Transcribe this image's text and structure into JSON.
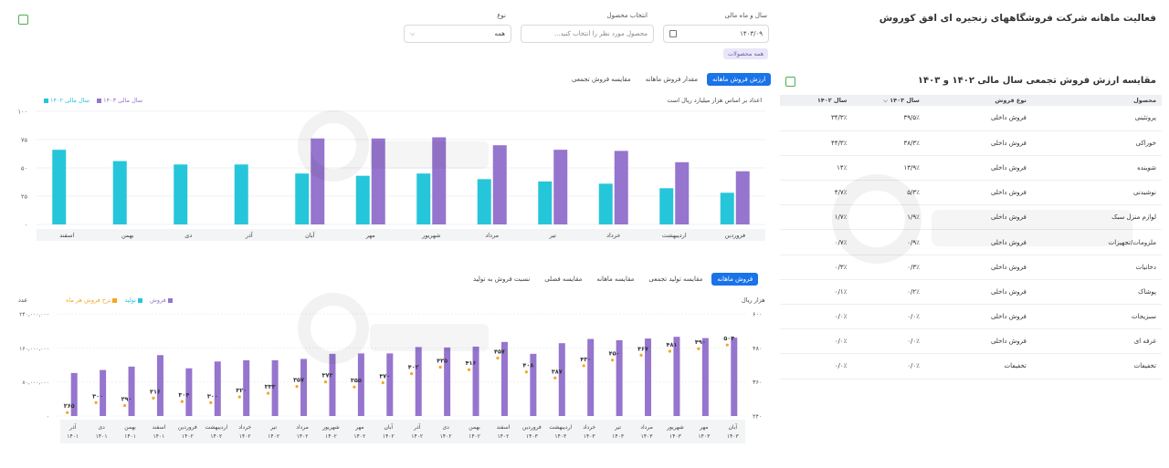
{
  "header": {
    "title": "فعالیت ماهانه شرکت فروشگاههای زنجیره ای افق کوروش",
    "filters": {
      "year_month_label": "سال و ماه مالی",
      "year_month_value": "۱۴۰۳/۰۹",
      "product_label": "انتخاب محصول",
      "product_placeholder": "محصول مورد نظر را انتخاب کنید...",
      "type_label": "نوع",
      "type_value": "همه",
      "chip": "همه محصولات"
    }
  },
  "table": {
    "title": "مقایسه ارزش فروش تجمعی سال مالی ۱۴۰۲ و ۱۴۰۳",
    "columns": [
      "محصول",
      "نوع فروش",
      "سال ۱۴۰۳",
      "سال ۱۴۰۲"
    ],
    "rows": [
      [
        "پروتئینی",
        "فروش داخلی",
        "۳۹/۵٪",
        "۳۴/۳٪"
      ],
      [
        "خوراکی",
        "فروش داخلی",
        "۳۸/۳٪",
        "۴۴/۳٪"
      ],
      [
        "شوینده",
        "فروش داخلی",
        "۱۳/۹٪",
        "۱۴٪"
      ],
      [
        "نوشیدنی",
        "فروش داخلی",
        "۵/۳٪",
        "۴/۷٪"
      ],
      [
        "لوازم منزل سبک",
        "فروش داخلی",
        "۱/۹٪",
        "۱/۷٪"
      ],
      [
        "ملزومات/تجهیزات",
        "فروش داخلی",
        "۰/۹٪",
        "۰/۷٪"
      ],
      [
        "دخانیات",
        "فروش داخلی",
        "۰/۳٪",
        "۰/۳٪"
      ],
      [
        "پوشاک",
        "فروش داخلی",
        "۰/۲٪",
        "۰/۱٪"
      ],
      [
        "سبزیجات",
        "فروش داخلی",
        "۰/۰٪",
        "۰/۰٪"
      ],
      [
        "غرفه ای",
        "فروش داخلی",
        "۰/۰٪",
        "۰/۰٪"
      ],
      [
        "تخفیفات",
        "تخفیفات",
        "۰/۰٪",
        "۰/۰٪"
      ]
    ]
  },
  "top_chart": {
    "tabs": [
      "ارزش فروش ماهانه",
      "مقدار فروش ماهانه",
      "مقایسه فروش تجمعی"
    ],
    "note": "اعداد بر اساس هزار میلیارد ریال است",
    "legend": [
      "سال مالی ۱۴۰۳",
      "سال مالی ۱۴۰۲"
    ],
    "colors": {
      "y1403": "#9575cd",
      "y1402": "#26c6da"
    }
  },
  "bottom_chart": {
    "tabs": [
      "فروش ماهانه",
      "مقایسه تولید تجمعی",
      "مقایسه ماهانه",
      "مقایسه فصلی",
      "نسبت فروش به تولید"
    ],
    "left_unit": "هزار ریال",
    "right_unit": "عدد",
    "legend": [
      "فروش",
      "تولید",
      "نرخ فروش هر ماه"
    ],
    "colors": {
      "sales": "#9575cd",
      "production": "#26c6da",
      "rate": "#f5a623"
    }
  },
  "chart_data": [
    {
      "type": "bar",
      "title": "",
      "categories": [
        "فروردین",
        "اردیبهشت",
        "خرداد",
        "تیر",
        "مرداد",
        "شهریور",
        "مهر",
        "آبان",
        "آذر",
        "دی",
        "بهمن",
        "اسفند"
      ],
      "ylim": [
        0,
        100
      ],
      "yticks": [
        "۰",
        "۲۵",
        "۵۰",
        "۷۵",
        "۱۰۰"
      ],
      "series": [
        {
          "name": "سال مالی ۱۴۰۲",
          "values": [
            28,
            32,
            36,
            38,
            40,
            45,
            43,
            45,
            53,
            53,
            56,
            66
          ]
        },
        {
          "name": "سال مالی ۱۴۰۳",
          "values": [
            47,
            55,
            65,
            66,
            70,
            77,
            76,
            76,
            null,
            null,
            null,
            null
          ]
        }
      ]
    },
    {
      "type": "bar",
      "title": "",
      "categories": [
        "آذر ۱۴۰۱",
        "دی ۱۴۰۱",
        "بهمن ۱۴۰۱",
        "اسفند ۱۴۰۱",
        "فروردین ۱۴۰۲",
        "اردیبهشت ۱۴۰۲",
        "خرداد ۱۴۰۲",
        "تیر ۱۴۰۲",
        "مرداد ۱۴۰۲",
        "شهریور ۱۴۰۲",
        "مهر ۱۴۰۲",
        "آبان ۱۴۰۲",
        "آذر ۱۴۰۲",
        "دی ۱۴۰۲",
        "بهمن ۱۴۰۲",
        "اسفند ۱۴۰۲",
        "فروردین ۱۴۰۳",
        "اردیبهشت ۱۴۰۳",
        "خرداد ۱۴۰۳",
        "تیر ۱۴۰۳",
        "مرداد ۱۴۰۳",
        "شهریور ۱۴۰۳",
        "مهر ۱۴۰۳",
        "آبان ۱۴۰۳"
      ],
      "left_ylim": [
        0,
        240000000
      ],
      "left_yticks": [
        "۰",
        "۸۰,۰۰۰,۰۰۰",
        "۱۶۰,۰۰۰,۰۰۰",
        "۲۴۰,۰۰۰,۰۰۰"
      ],
      "right_ylim": [
        240,
        600
      ],
      "right_yticks": [
        "۲۴۰",
        "۳۶۰",
        "۴۸۰",
        "۶۰۰"
      ],
      "series": [
        {
          "name": "فروش",
          "values": [
            101,
            108,
            116,
            143,
            112,
            128,
            131,
            131,
            134,
            146,
            147,
            147,
            162,
            161,
            163,
            174,
            146,
            171,
            181,
            178,
            182,
            186,
            183,
            184
          ]
        },
        {
          "name": "نرخ فروش هر ماه",
          "values": [
            265,
            300,
            290,
            316,
            304,
            300,
            320,
            333,
            357,
            373,
            355,
            370,
            402,
            425,
            416,
            457,
            408,
            387,
            430,
            450,
            467,
            481,
            490,
            503
          ]
        }
      ],
      "rate_labels": [
        "۲۶۵",
        "۳۰۰",
        "۲۹۰",
        "۳۱۶",
        "۳۰۴",
        "۳۰۰",
        "۳۲۰",
        "۳۳۳",
        "۳۵۷",
        "۳۷۳",
        "۳۵۵",
        "۳۷۰",
        "۴۰۲",
        "۴۲۵",
        "۴۱۶",
        "۴۵۷",
        "۴۰۸",
        "۳۸۷",
        "۴۳۰",
        "۴۵۰",
        "۴۶۷",
        "۴۸۱",
        "۴۹۰",
        "۵۰۳"
      ]
    }
  ]
}
